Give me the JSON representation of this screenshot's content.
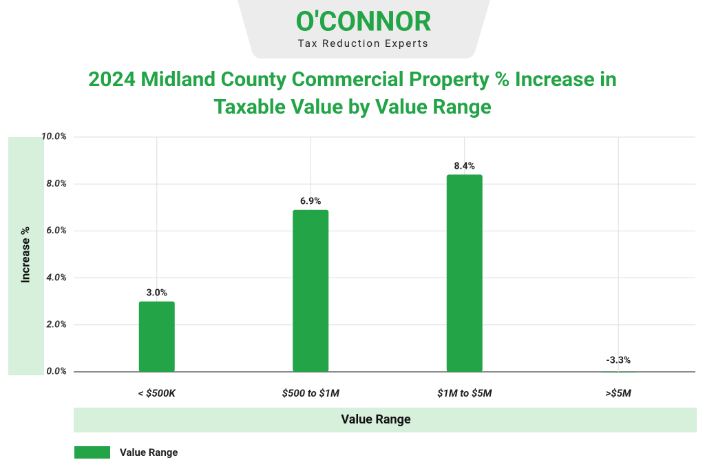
{
  "brand": {
    "name": "O'CONNOR",
    "tagline": "Tax Reduction Experts"
  },
  "chart_data": {
    "type": "bar",
    "title": "2024 Midland County Commercial Property % Increase in Taxable Value by Value Range",
    "x_label": "Value Range",
    "y_label": "Increase %",
    "categories": [
      "< $500K",
      "$500 to $1M",
      "$1M to $5M",
      ">$5M"
    ],
    "series": [
      {
        "name": "Value Range",
        "color": "#22a447",
        "values": [
          3.0,
          6.9,
          8.4,
          -3.3
        ],
        "value_labels": [
          "3.0%",
          "6.9%",
          "8.4%",
          "-3.3%"
        ]
      }
    ],
    "ylim": [
      0,
      10
    ],
    "yticks": [
      {
        "value": 0,
        "label": "0.0%"
      },
      {
        "value": 2,
        "label": "2.0%"
      },
      {
        "value": 4,
        "label": "4.0%"
      },
      {
        "value": 6,
        "label": "6.0%"
      },
      {
        "value": 8,
        "label": "8.0%"
      },
      {
        "value": 10,
        "label": "10.0%"
      }
    ],
    "grid": true,
    "legend": "bottom-left"
  }
}
